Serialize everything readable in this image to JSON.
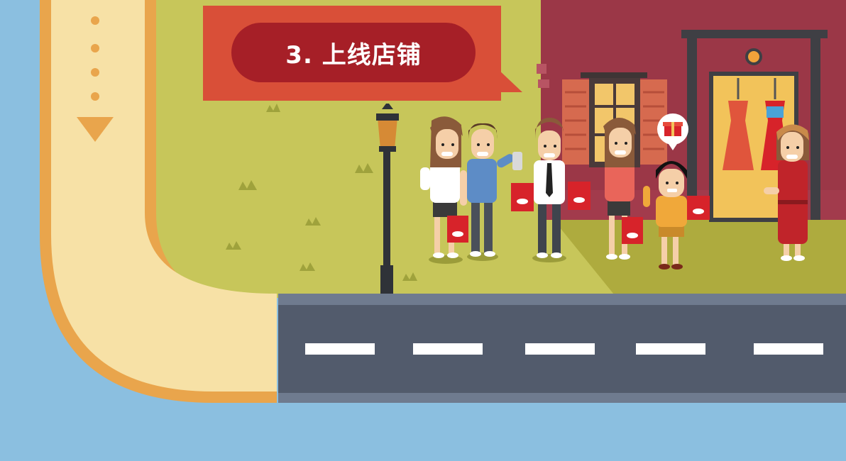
{
  "banner": {
    "title": "3. 上线店铺"
  },
  "colors": {
    "sky": "#8bbfe0",
    "path_border": "#e9a54c",
    "path_fill": "#f7e1a6",
    "grass": "#c7c65a",
    "grass_dark": "#aeab3e",
    "road": "#525b6c",
    "road_edge": "#6f7b8f",
    "road_marking": "#ffffff",
    "building": "#9b3747",
    "banner_outer": "#d94f38",
    "banner_inner": "#a61f27",
    "shopping_bag": "#d7232a"
  },
  "icons": {
    "path_arrow": "triangle-down",
    "gift_bubble": "gift-icon",
    "street_lamp": "lamp"
  }
}
